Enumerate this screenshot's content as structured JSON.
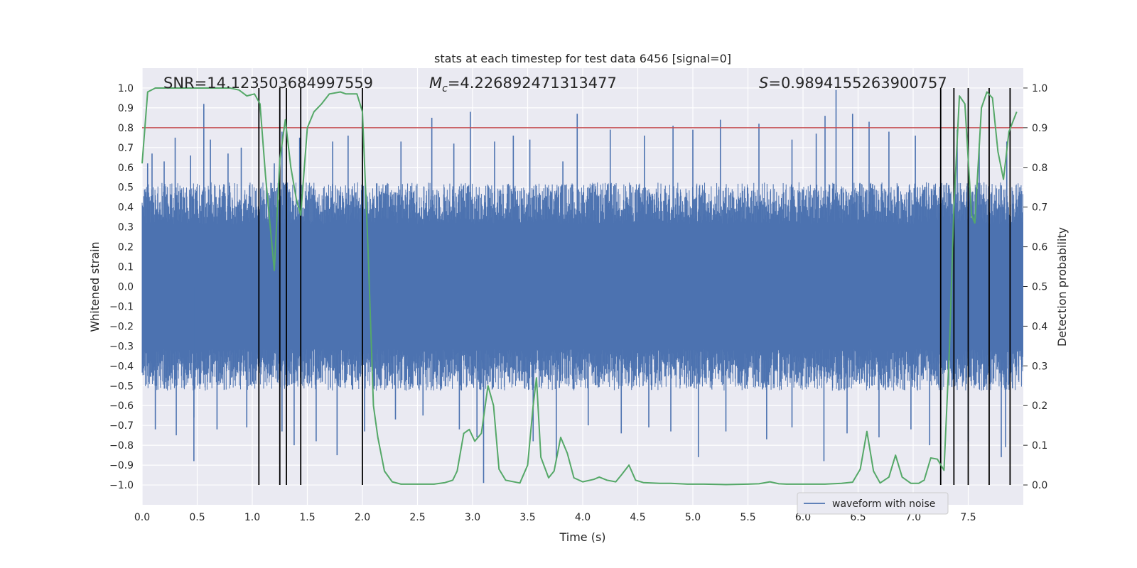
{
  "chart_data": {
    "type": "line",
    "title": "stats at each timestep for test data 6456 [signal=0]",
    "xlabel": "Time (s)",
    "ylabel": "Whitened strain",
    "ylabel_right": "Detection probability",
    "xlim": [
      0.0,
      8.0
    ],
    "ylim": [
      -1.1,
      1.1
    ],
    "ylim_right": [
      -0.05,
      1.05
    ],
    "x_ticks": [
      "0.0",
      "0.5",
      "1.0",
      "1.5",
      "2.0",
      "2.5",
      "3.0",
      "3.5",
      "4.0",
      "4.5",
      "5.0",
      "5.5",
      "6.0",
      "6.5",
      "7.0",
      "7.5"
    ],
    "y_ticks": [
      "1.0",
      "0.9",
      "0.8",
      "0.7",
      "0.6",
      "0.5",
      "0.4",
      "0.3",
      "0.2",
      "0.1",
      "0.0",
      "−0.1",
      "−0.2",
      "−0.3",
      "−0.4",
      "−0.5",
      "−0.6",
      "−0.7",
      "−0.8",
      "−0.9",
      "−1.0"
    ],
    "y_right_ticks": [
      "1.0",
      "0.9",
      "0.8",
      "0.7",
      "0.6",
      "0.5",
      "0.4",
      "0.3",
      "0.2",
      "0.1",
      "0.0"
    ],
    "grid": true,
    "legend": {
      "position": "lower-right",
      "entries": [
        "waveform with noise"
      ]
    },
    "annotations": {
      "snr": "SNR=14.123503684997559",
      "mc_symbol": "M",
      "mc_subscript": "c",
      "mc_value": "=4.226892471313477",
      "s_symbol": "S",
      "s_value": "=0.9894155263900757"
    },
    "threshold": {
      "value": 0.9,
      "axis": "right",
      "color": "#c44e52"
    },
    "vertical_lines_x": [
      1.06,
      1.25,
      1.31,
      1.44,
      2.0,
      7.25,
      7.37,
      7.5,
      7.69,
      7.88
    ],
    "series": [
      {
        "name": "waveform with noise",
        "color": "#4c72b0",
        "envelope_typical": 0.3,
        "spikes": [
          {
            "x": 0.05,
            "y": 0.62
          },
          {
            "x": 0.09,
            "y": 0.67
          },
          {
            "x": 0.2,
            "y": 0.63
          },
          {
            "x": 0.3,
            "y": 0.75
          },
          {
            "x": 0.44,
            "y": 0.66
          },
          {
            "x": 0.56,
            "y": 0.92
          },
          {
            "x": 0.62,
            "y": 0.74
          },
          {
            "x": 0.78,
            "y": 0.67
          },
          {
            "x": 0.9,
            "y": 0.7
          },
          {
            "x": 1.2,
            "y": 0.62
          },
          {
            "x": 1.27,
            "y": 0.78
          },
          {
            "x": 1.43,
            "y": 0.75
          },
          {
            "x": 1.73,
            "y": 0.73
          },
          {
            "x": 1.87,
            "y": 0.76
          },
          {
            "x": 2.35,
            "y": 0.73
          },
          {
            "x": 2.63,
            "y": 0.85
          },
          {
            "x": 2.83,
            "y": 0.72
          },
          {
            "x": 2.98,
            "y": 0.88
          },
          {
            "x": 3.2,
            "y": 0.73
          },
          {
            "x": 3.37,
            "y": 0.76
          },
          {
            "x": 3.52,
            "y": 0.74
          },
          {
            "x": 3.82,
            "y": 0.63
          },
          {
            "x": 3.95,
            "y": 0.87
          },
          {
            "x": 4.25,
            "y": 0.79
          },
          {
            "x": 4.56,
            "y": 0.76
          },
          {
            "x": 4.82,
            "y": 0.81
          },
          {
            "x": 5.0,
            "y": 0.79
          },
          {
            "x": 5.25,
            "y": 0.84
          },
          {
            "x": 5.6,
            "y": 0.82
          },
          {
            "x": 5.9,
            "y": 0.74
          },
          {
            "x": 6.12,
            "y": 0.77
          },
          {
            "x": 6.2,
            "y": 0.86
          },
          {
            "x": 6.3,
            "y": 0.99
          },
          {
            "x": 6.45,
            "y": 0.87
          },
          {
            "x": 6.6,
            "y": 0.83
          },
          {
            "x": 6.78,
            "y": 0.78
          },
          {
            "x": 7.02,
            "y": 0.76
          },
          {
            "x": 7.4,
            "y": 0.79
          },
          {
            "x": 7.6,
            "y": 0.72
          },
          {
            "x": 7.85,
            "y": 0.73
          },
          {
            "x": 0.12,
            "y": -0.72
          },
          {
            "x": 0.31,
            "y": -0.75
          },
          {
            "x": 0.47,
            "y": -0.66
          },
          {
            "x": 0.47,
            "y": -0.88
          },
          {
            "x": 0.68,
            "y": -0.72
          },
          {
            "x": 0.95,
            "y": -0.71
          },
          {
            "x": 1.27,
            "y": -0.73
          },
          {
            "x": 1.38,
            "y": -0.8
          },
          {
            "x": 1.58,
            "y": -0.78
          },
          {
            "x": 1.77,
            "y": -0.85
          },
          {
            "x": 2.02,
            "y": -0.73
          },
          {
            "x": 2.3,
            "y": -0.67
          },
          {
            "x": 2.55,
            "y": -0.65
          },
          {
            "x": 2.88,
            "y": -0.72
          },
          {
            "x": 3.04,
            "y": -0.76
          },
          {
            "x": 3.1,
            "y": -0.99
          },
          {
            "x": 3.55,
            "y": -0.78
          },
          {
            "x": 3.76,
            "y": -0.88
          },
          {
            "x": 4.05,
            "y": -0.7
          },
          {
            "x": 4.35,
            "y": -0.74
          },
          {
            "x": 4.6,
            "y": -0.71
          },
          {
            "x": 4.8,
            "y": -0.73
          },
          {
            "x": 5.05,
            "y": -0.86
          },
          {
            "x": 5.3,
            "y": -0.73
          },
          {
            "x": 5.67,
            "y": -0.77
          },
          {
            "x": 5.9,
            "y": -0.71
          },
          {
            "x": 6.19,
            "y": -0.88
          },
          {
            "x": 6.4,
            "y": -0.74
          },
          {
            "x": 6.69,
            "y": -0.76
          },
          {
            "x": 6.98,
            "y": -0.72
          },
          {
            "x": 7.15,
            "y": -0.8
          },
          {
            "x": 7.5,
            "y": -0.78
          },
          {
            "x": 7.8,
            "y": -0.86
          },
          {
            "x": 7.84,
            "y": -0.81
          }
        ]
      },
      {
        "name": "Detection probability",
        "axis": "right",
        "color": "#55a868",
        "points": [
          [
            0.0,
            0.81
          ],
          [
            0.05,
            0.99
          ],
          [
            0.12,
            1.0
          ],
          [
            0.25,
            1.0
          ],
          [
            0.5,
            1.0
          ],
          [
            0.8,
            1.0
          ],
          [
            0.88,
            0.995
          ],
          [
            0.95,
            0.98
          ],
          [
            1.02,
            0.985
          ],
          [
            1.07,
            0.96
          ],
          [
            1.12,
            0.78
          ],
          [
            1.18,
            0.6
          ],
          [
            1.2,
            0.54
          ],
          [
            1.25,
            0.82
          ],
          [
            1.3,
            0.92
          ],
          [
            1.35,
            0.8
          ],
          [
            1.4,
            0.72
          ],
          [
            1.44,
            0.68
          ],
          [
            1.5,
            0.9
          ],
          [
            1.56,
            0.94
          ],
          [
            1.63,
            0.96
          ],
          [
            1.7,
            0.985
          ],
          [
            1.8,
            0.99
          ],
          [
            1.85,
            0.985
          ],
          [
            1.95,
            0.985
          ],
          [
            2.0,
            0.94
          ],
          [
            2.05,
            0.6
          ],
          [
            2.1,
            0.2
          ],
          [
            2.14,
            0.12
          ],
          [
            2.2,
            0.035
          ],
          [
            2.27,
            0.008
          ],
          [
            2.35,
            0.002
          ],
          [
            2.5,
            0.002
          ],
          [
            2.65,
            0.002
          ],
          [
            2.75,
            0.006
          ],
          [
            2.82,
            0.012
          ],
          [
            2.86,
            0.035
          ],
          [
            2.92,
            0.13
          ],
          [
            2.97,
            0.14
          ],
          [
            3.02,
            0.11
          ],
          [
            3.08,
            0.13
          ],
          [
            3.14,
            0.25
          ],
          [
            3.19,
            0.2
          ],
          [
            3.24,
            0.04
          ],
          [
            3.3,
            0.012
          ],
          [
            3.43,
            0.005
          ],
          [
            3.5,
            0.05
          ],
          [
            3.55,
            0.2
          ],
          [
            3.58,
            0.27
          ],
          [
            3.62,
            0.07
          ],
          [
            3.69,
            0.018
          ],
          [
            3.74,
            0.035
          ],
          [
            3.8,
            0.12
          ],
          [
            3.86,
            0.08
          ],
          [
            3.92,
            0.018
          ],
          [
            4.0,
            0.008
          ],
          [
            4.1,
            0.014
          ],
          [
            4.15,
            0.02
          ],
          [
            4.22,
            0.012
          ],
          [
            4.3,
            0.008
          ],
          [
            4.35,
            0.025
          ],
          [
            4.42,
            0.05
          ],
          [
            4.48,
            0.012
          ],
          [
            4.55,
            0.006
          ],
          [
            4.7,
            0.004
          ],
          [
            4.8,
            0.004
          ],
          [
            4.95,
            0.002
          ],
          [
            5.1,
            0.002
          ],
          [
            5.3,
            0.001
          ],
          [
            5.5,
            0.002
          ],
          [
            5.6,
            0.003
          ],
          [
            5.7,
            0.008
          ],
          [
            5.78,
            0.003
          ],
          [
            5.85,
            0.002
          ],
          [
            6.0,
            0.002
          ],
          [
            6.2,
            0.002
          ],
          [
            6.35,
            0.004
          ],
          [
            6.45,
            0.007
          ],
          [
            6.52,
            0.04
          ],
          [
            6.58,
            0.135
          ],
          [
            6.64,
            0.035
          ],
          [
            6.7,
            0.005
          ],
          [
            6.78,
            0.02
          ],
          [
            6.84,
            0.075
          ],
          [
            6.9,
            0.02
          ],
          [
            6.98,
            0.004
          ],
          [
            7.05,
            0.004
          ],
          [
            7.1,
            0.012
          ],
          [
            7.16,
            0.068
          ],
          [
            7.22,
            0.065
          ],
          [
            7.28,
            0.037
          ],
          [
            7.33,
            0.35
          ],
          [
            7.37,
            0.7
          ],
          [
            7.42,
            0.98
          ],
          [
            7.47,
            0.96
          ],
          [
            7.53,
            0.68
          ],
          [
            7.56,
            0.66
          ],
          [
            7.62,
            0.95
          ],
          [
            7.67,
            0.99
          ],
          [
            7.72,
            0.975
          ],
          [
            7.77,
            0.84
          ],
          [
            7.82,
            0.77
          ],
          [
            7.87,
            0.89
          ],
          [
            7.94,
            0.94
          ]
        ]
      }
    ]
  }
}
